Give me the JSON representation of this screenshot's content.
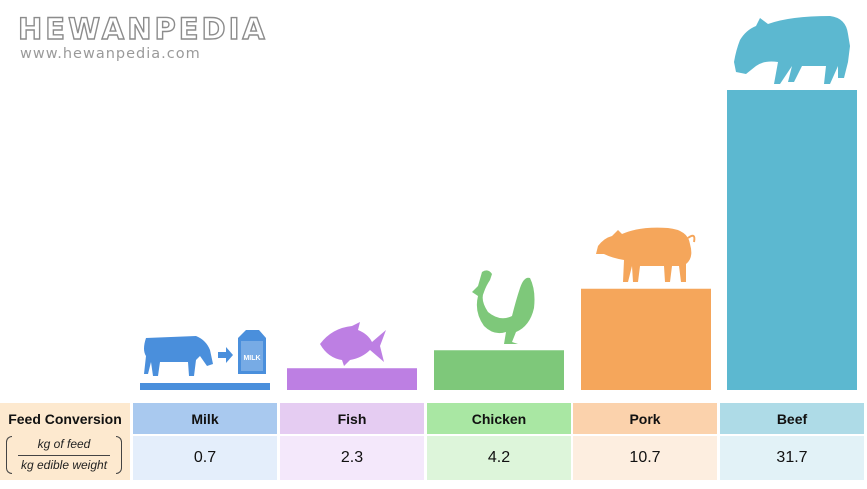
{
  "logo": {
    "brand": "HEWANPEDIA",
    "site": "www.hewanpedia.com"
  },
  "table": {
    "title": "Feed Conversion",
    "fraction_numerator": "kg of feed",
    "fraction_denominator": "kg edible weight"
  },
  "chart_data": {
    "type": "bar",
    "title": "",
    "xlabel": "",
    "ylabel": "",
    "categories": [
      "Milk",
      "Fish",
      "Chicken",
      "Pork",
      "Beef"
    ],
    "values": [
      0.7,
      2.3,
      4.2,
      10.7,
      31.7
    ],
    "value_labels": [
      "0.7",
      "2.3",
      "4.2",
      "10.7",
      "31.7"
    ],
    "ylim": [
      0,
      31.7
    ],
    "grid": false,
    "legend": "none",
    "bar_colors": [
      "#4a8fdc",
      "#bd7fe3",
      "#7ec87a",
      "#f5a65b",
      "#5cb8d0"
    ],
    "header_colors": [
      "#a9c9ef",
      "#e5ccf2",
      "#a9e7a3",
      "#fbd2ac",
      "#aedbe7"
    ],
    "value_cell_colors": [
      "#e4eefb",
      "#f4e8fb",
      "#ddf5da",
      "#fdeee0",
      "#e2f2f7"
    ],
    "icons": [
      "cow-to-milk-carton-icon",
      "fish-icon",
      "chicken-icon",
      "pig-icon",
      "cow-icon"
    ],
    "icon_text": "MILK"
  }
}
